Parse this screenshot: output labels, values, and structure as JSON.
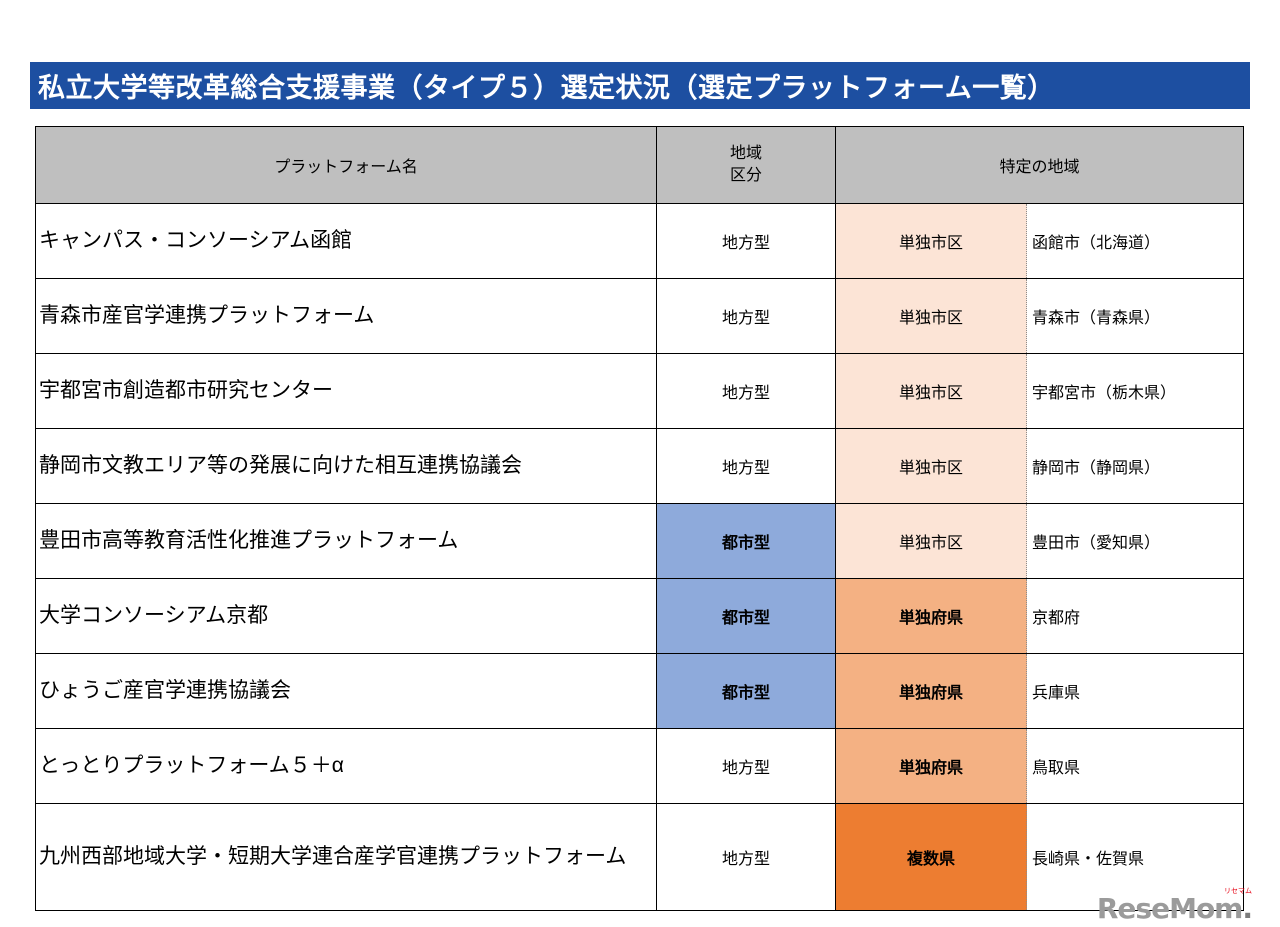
{
  "title": "私立大学等改革総合支援事業（タイプ５）選定状況（選定プラットフォーム一覧）",
  "colors": {
    "title_bar": "#1d4fa1",
    "header_gray": "#bfbfbf",
    "urban_blue": "#8eaadb",
    "single_city_peach": "#fce4d6",
    "single_pref_orange": "#f4b183",
    "multi_pref_orange": "#ed7d31"
  },
  "table": {
    "headers": {
      "platform": "プラットフォーム名",
      "region_type": "地域\n区分",
      "specific_region": "特定の地域"
    },
    "rows": [
      {
        "platform": "キャンパス・コンソーシアム函館",
        "region_type": "地方型",
        "region_style": "plain",
        "scope": "単独市区",
        "scope_style": "light",
        "area": "函館市（北海道）",
        "tall": false
      },
      {
        "platform": "青森市産官学連携プラットフォーム",
        "region_type": "地方型",
        "region_style": "plain",
        "scope": "単独市区",
        "scope_style": "light",
        "area": "青森市（青森県）",
        "tall": false
      },
      {
        "platform": "宇都宮市創造都市研究センター",
        "region_type": "地方型",
        "region_style": "plain",
        "scope": "単独市区",
        "scope_style": "light",
        "area": "宇都宮市（栃木県）",
        "tall": false
      },
      {
        "platform": "静岡市文教エリア等の発展に向けた相互連携協議会",
        "region_type": "地方型",
        "region_style": "plain",
        "scope": "単独市区",
        "scope_style": "light",
        "area": "静岡市（静岡県）",
        "tall": false
      },
      {
        "platform": "豊田市高等教育活性化推進プラットフォーム",
        "region_type": "都市型",
        "region_style": "urban",
        "scope": "単独市区",
        "scope_style": "light",
        "area": "豊田市（愛知県）",
        "tall": false
      },
      {
        "platform": "大学コンソーシアム京都",
        "region_type": "都市型",
        "region_style": "urban",
        "scope": "単独府県",
        "scope_style": "medium",
        "area": "京都府",
        "tall": false
      },
      {
        "platform": "ひょうご産官学連携協議会",
        "region_type": "都市型",
        "region_style": "urban",
        "scope": "単独府県",
        "scope_style": "medium",
        "area": "兵庫県",
        "tall": false
      },
      {
        "platform": "とっとりプラットフォーム５＋α",
        "region_type": "地方型",
        "region_style": "plain",
        "scope": "単独府県",
        "scope_style": "medium",
        "area": "鳥取県",
        "tall": false
      },
      {
        "platform": "九州西部地域大学・短期大学連合産学官連携プラットフォーム",
        "region_type": "地方型",
        "region_style": "plain",
        "scope": "複数県",
        "scope_style": "dark",
        "area": "長崎県・佐賀県",
        "tall": true
      }
    ]
  },
  "logo": {
    "text": "ReseMom",
    "dot": ".",
    "kana": "リセマム"
  }
}
